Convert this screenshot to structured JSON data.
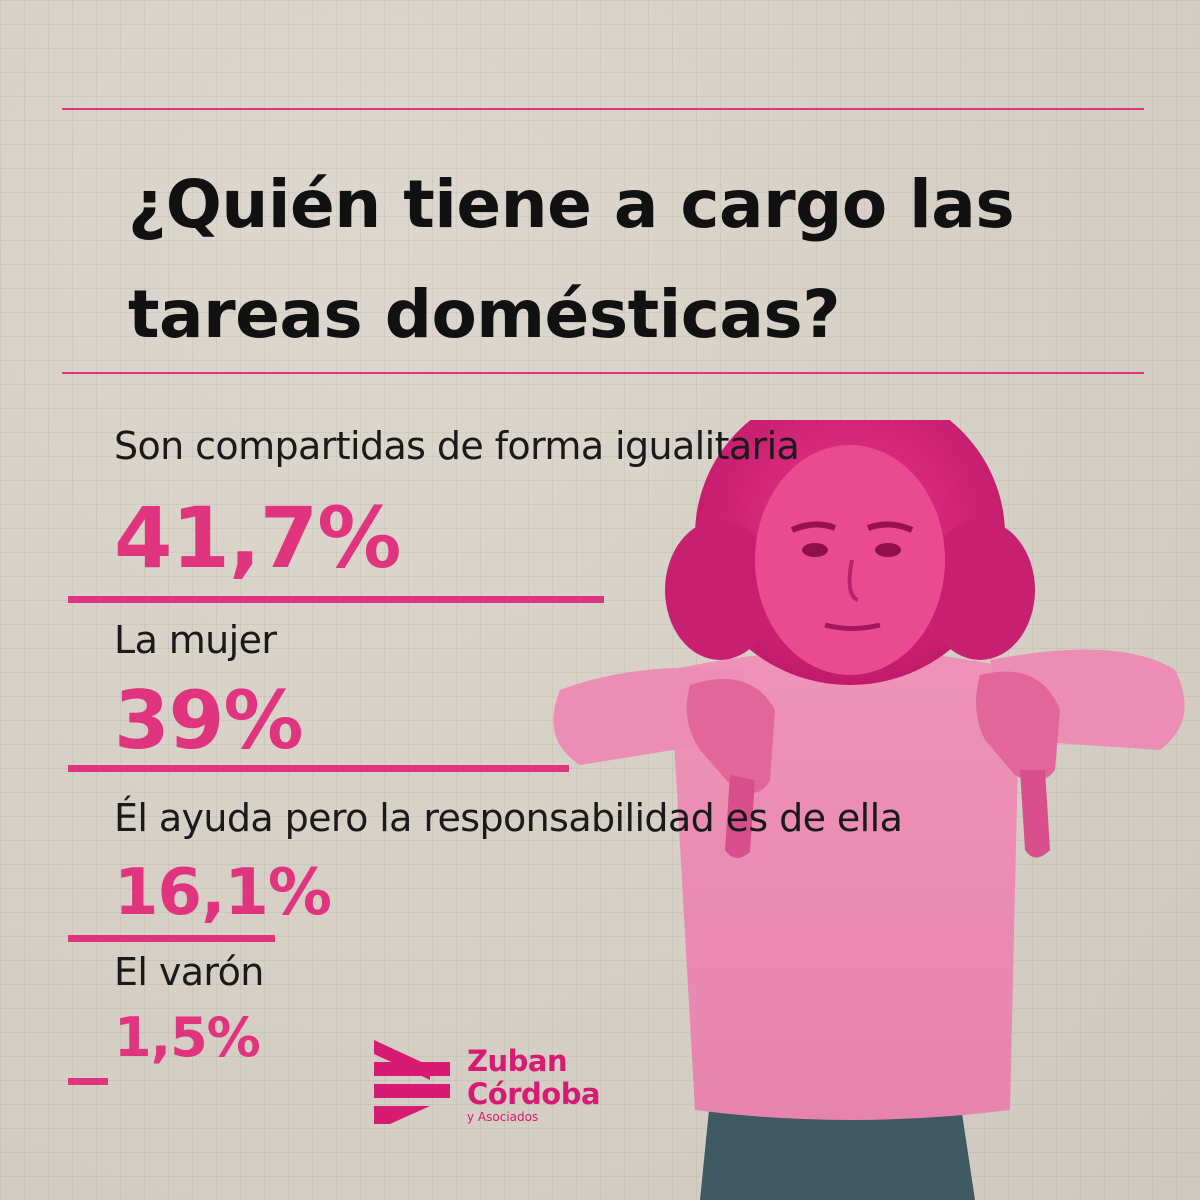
{
  "title": {
    "line1": "¿Quién tiene a cargo las",
    "line2": "tareas domésticas?"
  },
  "chart_data": {
    "type": "bar",
    "title": "¿Quién tiene a cargo las tareas domésticas?",
    "categories": [
      "Son compartidas de forma igualitaria",
      "La mujer",
      "Él ayuda pero la responsabilidad es de ella",
      "El varón"
    ],
    "values": [
      41.7,
      39,
      16.1,
      1.5
    ],
    "value_labels": [
      "41,7%",
      "39%",
      "16,1%",
      "1,5%"
    ],
    "unit": "%",
    "orientation": "horizontal",
    "grid": false,
    "color": "#e0357e"
  },
  "logo": {
    "line1": "Zuban",
    "line2": "Córdoba",
    "line3": "y Asociados",
    "color": "#d81b72"
  },
  "colors": {
    "accent": "#e0357e",
    "background": "#d7d1c7",
    "text": "#111111"
  }
}
